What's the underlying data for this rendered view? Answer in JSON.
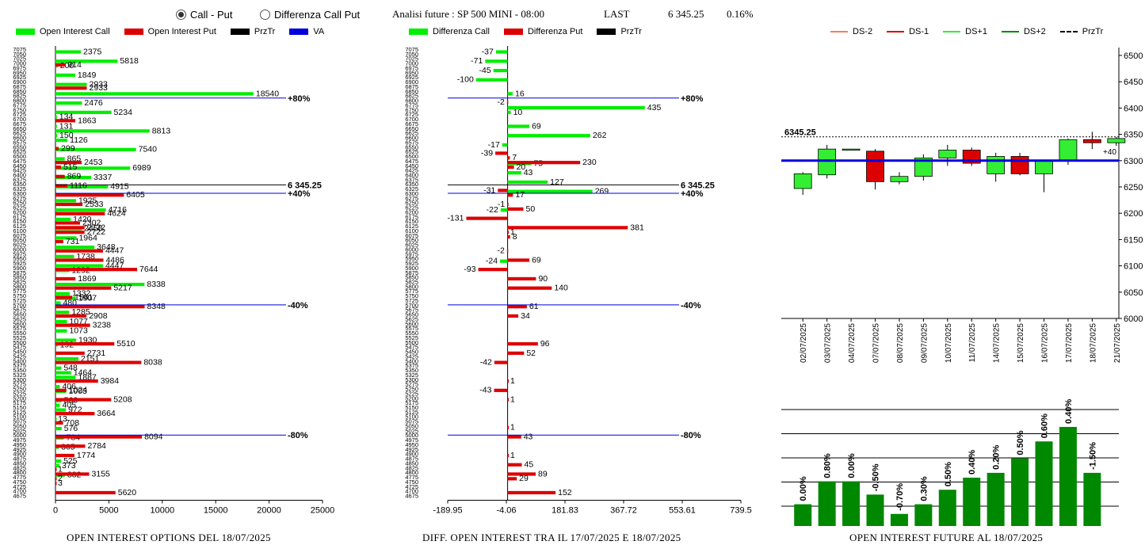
{
  "header": {
    "radio_call_put": "Call - Put",
    "radio_diff": "Differenza Call Put",
    "title": "Analisi future : SP 500 MINI - 08:00",
    "last_label": "LAST",
    "last_value": "6 345.25",
    "last_change": "0.16%"
  },
  "legend_left": {
    "items": [
      {
        "label": "Open Interest Call",
        "color": "#00ee00"
      },
      {
        "label": "Open Interest Put",
        "color": "#dd0000"
      },
      {
        "label": "PrzTr",
        "color": "#000000"
      },
      {
        "label": "VA",
        "color": "#0000dd"
      }
    ]
  },
  "legend_mid": {
    "items": [
      {
        "label": "Differenza Call",
        "color": "#00ee00"
      },
      {
        "label": "Differenza Put",
        "color": "#dd0000"
      },
      {
        "label": "PrzTr",
        "color": "#000000"
      }
    ]
  },
  "legend_right": {
    "items": [
      {
        "label": "DS-2",
        "color": "#f08060"
      },
      {
        "label": "DS-1",
        "color": "#dd0000"
      },
      {
        "label": "DS+1",
        "color": "#33ee33"
      },
      {
        "label": "DS+2",
        "color": "#008800"
      },
      {
        "label": "PrzTr",
        "color": "#000000"
      }
    ]
  },
  "footer": {
    "left": "OPEN INTEREST OPTIONS DEL 18/07/2025",
    "mid": "DIFF. OPEN INTEREST TRA IL 17/07/2025 E 18/07/2025",
    "right": "OPEN INTEREST FUTURE AL 18/07/2025"
  },
  "chart_data": [
    {
      "type": "bar",
      "orientation": "horizontal",
      "strikes": [
        7075,
        7050,
        7025,
        7000,
        6975,
        6950,
        6925,
        6900,
        6875,
        6850,
        6825,
        6800,
        6775,
        6750,
        6725,
        6700,
        6675,
        6650,
        6625,
        6600,
        6575,
        6550,
        6525,
        6500,
        6475,
        6450,
        6425,
        6400,
        6375,
        6350,
        6325,
        6300,
        6275,
        6250,
        6225,
        6200,
        6175,
        6150,
        6125,
        6100,
        6075,
        6050,
        6025,
        6000,
        5975,
        5950,
        5925,
        5900,
        5875,
        5850,
        5825,
        5800,
        5775,
        5750,
        5725,
        5700,
        5675,
        5650,
        5625,
        5600,
        5575,
        5550,
        5525,
        5500,
        5475,
        5450,
        5425,
        5400,
        5375,
        5350,
        5325,
        5300,
        5275,
        5250,
        5225,
        5200,
        5175,
        5150,
        5125,
        5100,
        5075,
        5050,
        5025,
        5000,
        4975,
        4950,
        4925,
        4900,
        4875,
        4850,
        4825,
        4800,
        4775,
        4750,
        4725,
        4700,
        4675
      ],
      "series": [
        {
          "name": "Open Interest Call",
          "color": "#00ee00",
          "points": [
            [
              7050,
              2375
            ],
            [
              7000,
              5818
            ],
            [
              6975,
              200
            ],
            [
              6925,
              1849
            ],
            [
              6875,
              2933
            ],
            [
              6825,
              18540
            ],
            [
              6775,
              2476
            ],
            [
              6725,
              5234
            ],
            [
              6700,
              134
            ],
            [
              6650,
              131
            ],
            [
              6625,
              8813
            ],
            [
              6600,
              150
            ],
            [
              6575,
              1126
            ],
            [
              6525,
              7540
            ],
            [
              6475,
              865
            ],
            [
              6425,
              6989
            ],
            [
              6375,
              3337
            ],
            [
              6325,
              4915
            ],
            [
              6250,
              1925
            ],
            [
              6200,
              4716
            ],
            [
              6150,
              1420
            ],
            [
              6100,
              2458
            ],
            [
              6050,
              1964
            ],
            [
              6000,
              3648
            ],
            [
              5950,
              1738
            ],
            [
              5900,
              4447
            ],
            [
              5875,
              1292
            ],
            [
              5800,
              8338
            ],
            [
              5750,
              1332
            ],
            [
              5725,
              1907
            ],
            [
              5700,
              480
            ],
            [
              5650,
              1285
            ],
            [
              5600,
              1077
            ],
            [
              5550,
              1073
            ],
            [
              5500,
              1930
            ],
            [
              5475,
              192
            ],
            [
              5400,
              2151
            ],
            [
              5350,
              548
            ],
            [
              5325,
              1464
            ],
            [
              5300,
              1887
            ],
            [
              5250,
              406
            ],
            [
              5225,
              1003
            ],
            [
              5175,
              566
            ],
            [
              5150,
              405
            ],
            [
              5125,
              972
            ],
            [
              5075,
              13
            ],
            [
              5025,
              576
            ],
            [
              4975,
              784
            ],
            [
              4925,
              305
            ],
            [
              4850,
              525
            ],
            [
              4825,
              373
            ],
            [
              4775,
              882
            ]
          ]
        },
        {
          "name": "Open Interest Put",
          "color": "#dd0000",
          "points": [
            [
              7000,
              914
            ],
            [
              6875,
              2933
            ],
            [
              6700,
              1863
            ],
            [
              6550,
              299
            ],
            [
              6475,
              2453
            ],
            [
              6450,
              515
            ],
            [
              6400,
              869
            ],
            [
              6350,
              1116
            ],
            [
              6300,
              6405
            ],
            [
              6250,
              2533
            ],
            [
              6200,
              4624
            ],
            [
              6150,
              2302
            ],
            [
              6125,
              2722
            ],
            [
              6100,
              2722
            ],
            [
              6050,
              731
            ],
            [
              6000,
              4447
            ],
            [
              5950,
              4486
            ],
            [
              5900,
              7644
            ],
            [
              5850,
              1869
            ],
            [
              5800,
              5217
            ],
            [
              5750,
              1561
            ],
            [
              5700,
              8348
            ],
            [
              5650,
              2908
            ],
            [
              5600,
              3238
            ],
            [
              5500,
              5510
            ],
            [
              5450,
              2731
            ],
            [
              5400,
              8038
            ],
            [
              5300,
              3984
            ],
            [
              5250,
              1024
            ],
            [
              5200,
              5208
            ],
            [
              5125,
              3664
            ],
            [
              5075,
              708
            ],
            [
              5000,
              8094
            ],
            [
              4950,
              2784
            ],
            [
              4900,
              1774
            ],
            [
              4825,
              1
            ],
            [
              4800,
              3155
            ],
            [
              4775,
              2
            ],
            [
              4750,
              3
            ],
            [
              4700,
              5620
            ]
          ]
        }
      ],
      "reference_lines": [
        {
          "label": "6 345.25",
          "y": 6345.25,
          "color": "#000000"
        },
        {
          "label": "+80%",
          "y": 6812,
          "color": "#0000dd"
        },
        {
          "label": "+40%",
          "y": 6300,
          "color": "#0000dd"
        },
        {
          "label": "-40%",
          "y": 5700,
          "color": "#0000dd"
        },
        {
          "label": "-80%",
          "y": 5000,
          "color": "#0000dd"
        }
      ],
      "x_ticks": [
        0,
        5000,
        10000,
        15000,
        20000,
        25000
      ],
      "xlim": [
        0,
        25000
      ]
    },
    {
      "type": "bar",
      "orientation": "horizontal",
      "strikes": [
        7075,
        7050,
        7025,
        7000,
        6975,
        6950,
        6925,
        6900,
        6875,
        6850,
        6825,
        6800,
        6775,
        6750,
        6725,
        6700,
        6675,
        6650,
        6625,
        6600,
        6575,
        6550,
        6525,
        6500,
        6475,
        6450,
        6425,
        6400,
        6375,
        6350,
        6325,
        6300,
        6275,
        6250,
        6225,
        6200,
        6175,
        6150,
        6125,
        6100,
        6075,
        6050,
        6025,
        6000,
        5975,
        5950,
        5925,
        5900,
        5875,
        5850,
        5825,
        5800,
        5775,
        5750,
        5725,
        5700,
        5675,
        5650,
        5625,
        5600,
        5575,
        5550,
        5525,
        5500,
        5475,
        5450,
        5425,
        5400,
        5375,
        5350,
        5325,
        5300,
        5275,
        5250,
        5225,
        5200,
        5175,
        5150,
        5125,
        5100,
        5075,
        5050,
        5025,
        5000,
        4975,
        4950,
        4925,
        4900,
        4875,
        4850,
        4825,
        4800,
        4775,
        4750,
        4725,
        4700,
        4675
      ],
      "series": [
        {
          "name": "Differenza Call",
          "color": "#00ee00",
          "points": [
            [
              7050,
              -37
            ],
            [
              7000,
              -71
            ],
            [
              6950,
              -45
            ],
            [
              6900,
              -100
            ],
            [
              6825,
              16
            ],
            [
              6750,
              435
            ],
            [
              6725,
              10
            ],
            [
              6650,
              69
            ],
            [
              6600,
              262
            ],
            [
              6550,
              -17
            ],
            [
              6450,
              75
            ],
            [
              6400,
              43
            ],
            [
              6350,
              127
            ],
            [
              6300,
              269
            ],
            [
              6200,
              -22
            ],
            [
              5925,
              -24
            ]
          ]
        },
        {
          "name": "Differenza Put",
          "color": "#dd0000",
          "points": [
            [
              6800,
              -2
            ],
            [
              6525,
              -39
            ],
            [
              6500,
              7
            ],
            [
              6475,
              230
            ],
            [
              6450,
              20
            ],
            [
              6325,
              -31
            ],
            [
              6300,
              17
            ],
            [
              6250,
              -1
            ],
            [
              6225,
              50
            ],
            [
              6175,
              -131
            ],
            [
              6125,
              381
            ],
            [
              6100,
              1
            ],
            [
              6075,
              8
            ],
            [
              6000,
              -2
            ],
            [
              5950,
              69
            ],
            [
              5900,
              -93
            ],
            [
              5850,
              90
            ],
            [
              5800,
              140
            ],
            [
              5700,
              61
            ],
            [
              5650,
              34
            ],
            [
              5500,
              96
            ],
            [
              5450,
              52
            ],
            [
              5400,
              -42
            ],
            [
              5300,
              1
            ],
            [
              5250,
              -43
            ],
            [
              5200,
              1
            ],
            [
              5050,
              1
            ],
            [
              5000,
              43
            ],
            [
              4900,
              1
            ],
            [
              4850,
              45
            ],
            [
              4800,
              89
            ],
            [
              4775,
              29
            ],
            [
              4700,
              152
            ]
          ]
        }
      ],
      "reference_lines": [
        {
          "label": "6 345.25",
          "y": 6345.25,
          "color": "#000000"
        },
        {
          "label": "+80%",
          "y": 6812,
          "color": "#0000dd"
        },
        {
          "label": "+40%",
          "y": 6300,
          "color": "#0000dd"
        },
        {
          "label": "-40%",
          "y": 5700,
          "color": "#0000dd"
        },
        {
          "label": "-80%",
          "y": 5000,
          "color": "#0000dd"
        }
      ],
      "x_ticks": [
        "-189.95",
        "-4.06",
        "181.83",
        "367.72",
        "553.61",
        "739.5"
      ],
      "xlim": [
        -189.95,
        739.5
      ]
    },
    {
      "type": "candlestick",
      "dates": [
        "02/07/2025",
        "03/07/2025",
        "04/07/2025",
        "07/07/2025",
        "08/07/2025",
        "09/07/2025",
        "10/07/2025",
        "11/07/2025",
        "14/07/2025",
        "15/07/2025",
        "16/07/2025",
        "17/07/2025",
        "18/07/2025",
        "21/07/2025"
      ],
      "ohlc": [
        {
          "o": 6247,
          "h": 6278,
          "l": 6235,
          "c": 6275,
          "up": true
        },
        {
          "o": 6273,
          "h": 6330,
          "l": 6266,
          "c": 6322,
          "up": true
        },
        {
          "o": 6322,
          "h": 6322,
          "l": 6320,
          "c": 6321,
          "up": true
        },
        {
          "o": 6318,
          "h": 6322,
          "l": 6245,
          "c": 6260,
          "up": false
        },
        {
          "o": 6260,
          "h": 6278,
          "l": 6255,
          "c": 6270,
          "up": true
        },
        {
          "o": 6270,
          "h": 6312,
          "l": 6262,
          "c": 6305,
          "up": true
        },
        {
          "o": 6305,
          "h": 6330,
          "l": 6290,
          "c": 6320,
          "up": true
        },
        {
          "o": 6320,
          "h": 6325,
          "l": 6290,
          "c": 6295,
          "up": false
        },
        {
          "o": 6275,
          "h": 6315,
          "l": 6260,
          "c": 6308,
          "up": true
        },
        {
          "o": 6308,
          "h": 6315,
          "l": 6272,
          "c": 6275,
          "up": false
        },
        {
          "o": 6275,
          "h": 6300,
          "l": 6240,
          "c": 6300,
          "up": true
        },
        {
          "o": 6300,
          "h": 6342,
          "l": 6292,
          "c": 6340,
          "up": true
        },
        {
          "o": 6340,
          "h": 6355,
          "l": 6322,
          "c": 6334,
          "up": false
        },
        {
          "o": 6334,
          "h": 6345,
          "l": 6328,
          "c": 6342,
          "up": true
        }
      ],
      "y_ticks": [
        6000,
        6050,
        6100,
        6150,
        6200,
        6250,
        6300,
        6350,
        6400,
        6450,
        6500
      ],
      "ylim": [
        6000,
        6515
      ],
      "price_label": "6345.25",
      "price_level": 6345.25,
      "va_level": 6300,
      "va_label": "+40"
    },
    {
      "type": "bar",
      "categories": [
        "02/07/2025",
        "03/07/2025",
        "04/07/2025",
        "07/07/2025",
        "08/07/2025",
        "09/07/2025",
        "10/07/2025",
        "11/07/2025",
        "14/07/2025",
        "15/07/2025",
        "16/07/2025",
        "17/07/2025",
        "18/07/2025",
        "21/07/2025"
      ],
      "values": [
        0.9,
        1.85,
        1.85,
        1.3,
        0.5,
        0.9,
        1.5,
        2.0,
        2.2,
        2.8,
        3.5,
        4.1,
        2.2
      ],
      "labels": [
        "0.00%",
        "0.80%",
        "0.00%",
        "-0.50%",
        "-0.70%",
        "0.30%",
        "0.50%",
        "0.40%",
        "0.20%",
        "0.50%",
        "0.60%",
        "0.40%",
        "-1.50%"
      ],
      "color": "#008800"
    }
  ]
}
